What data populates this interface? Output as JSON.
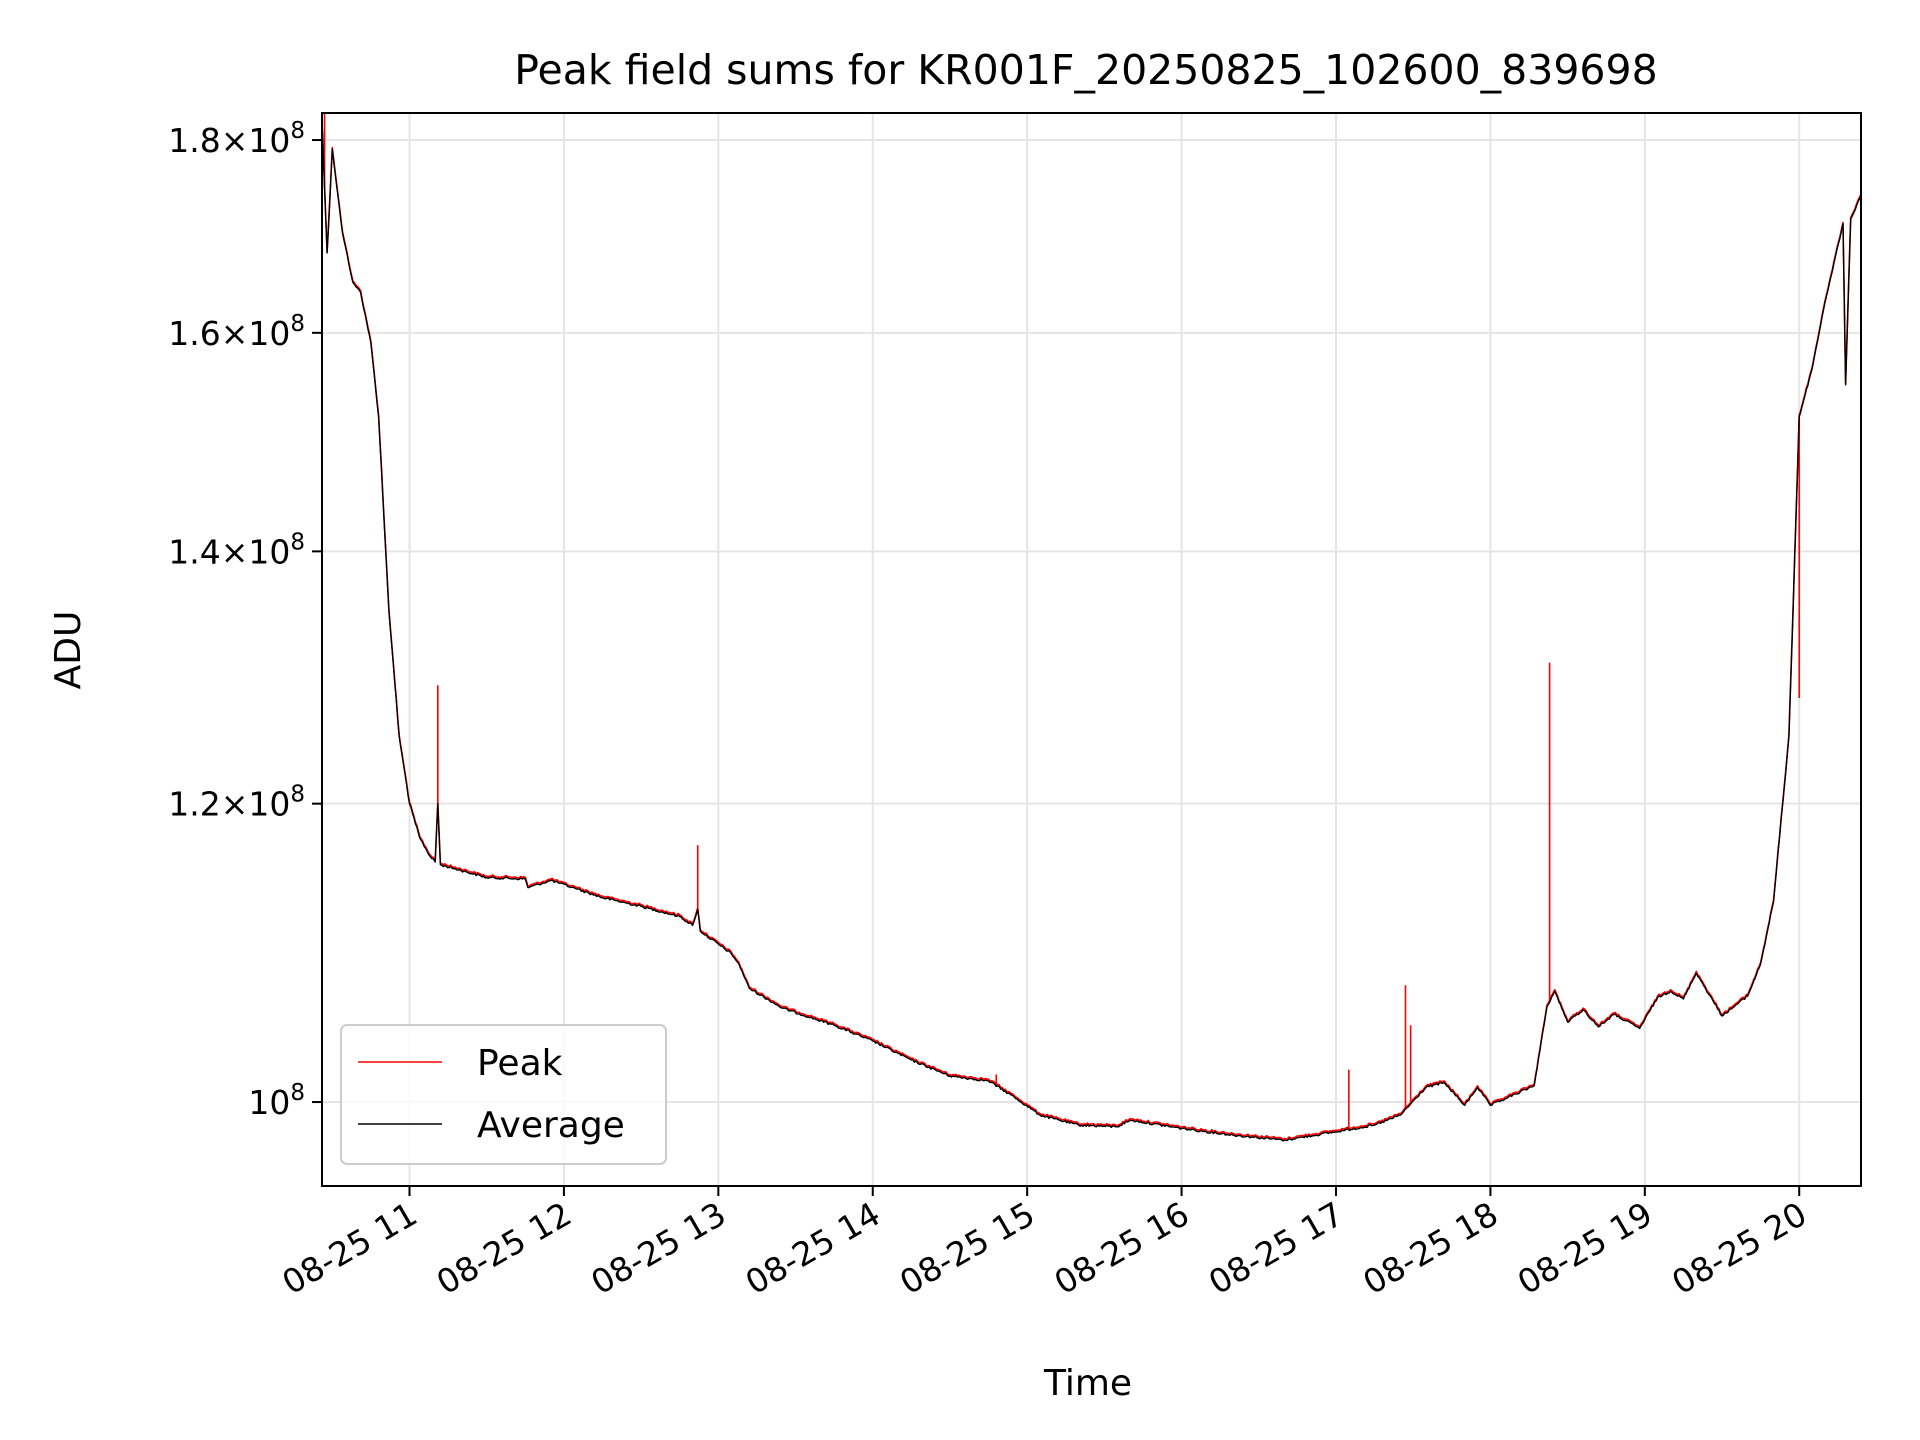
{
  "chart_data": {
    "type": "line",
    "title": "Peak field sums for KR001F_20250825_102600_839698",
    "xlabel": "Time",
    "ylabel": "ADU",
    "x_axis": {
      "kind": "datetime",
      "range": [
        "2025-08-25 10:26",
        "2025-08-25 20:24"
      ],
      "ticks": [
        "2025-08-25 11:00",
        "2025-08-25 12:00",
        "2025-08-25 13:00",
        "2025-08-25 14:00",
        "2025-08-25 15:00",
        "2025-08-25 16:00",
        "2025-08-25 17:00",
        "2025-08-25 18:00",
        "2025-08-25 19:00",
        "2025-08-25 20:00"
      ],
      "tick_labels": [
        "08-25 11",
        "08-25 12",
        "08-25 13",
        "08-25 14",
        "08-25 15",
        "08-25 16",
        "08-25 17",
        "08-25 18",
        "08-25 19",
        "08-25 20"
      ]
    },
    "y_axis": {
      "scale": "log",
      "range": [
        95000000,
        183000000
      ],
      "ticks": [
        100000000,
        120000000,
        140000000,
        160000000,
        180000000
      ],
      "tick_labels": [
        {
          "mantissa": "",
          "exponent": "8"
        },
        {
          "mantissa": "1.2",
          "exponent": "8"
        },
        {
          "mantissa": "1.4",
          "exponent": "8"
        },
        {
          "mantissa": "1.6",
          "exponent": "8"
        },
        {
          "mantissa": "1.8",
          "exponent": "8"
        }
      ]
    },
    "grid": true,
    "legend": {
      "position": "lower-left",
      "entries": [
        "Peak",
        "Average"
      ]
    },
    "series": [
      {
        "name": "Average",
        "color": "#000000",
        "points": [
          [
            "2025-08-25 10:26",
            182000000
          ],
          [
            "2025-08-25 10:28",
            168000000
          ],
          [
            "2025-08-25 10:30",
            179000000
          ],
          [
            "2025-08-25 10:34",
            170000000
          ],
          [
            "2025-08-25 10:38",
            165000000
          ],
          [
            "2025-08-25 10:41",
            164000000
          ],
          [
            "2025-08-25 10:45",
            159000000
          ],
          [
            "2025-08-25 10:48",
            152000000
          ],
          [
            "2025-08-25 10:52",
            135000000
          ],
          [
            "2025-08-25 10:56",
            125000000
          ],
          [
            "2025-08-25 11:00",
            120000000
          ],
          [
            "2025-08-25 11:04",
            117500000
          ],
          [
            "2025-08-25 11:08",
            116200000
          ],
          [
            "2025-08-25 11:10",
            115800000
          ],
          [
            "2025-08-25 11:11",
            120000000
          ],
          [
            "2025-08-25 11:12",
            115600000
          ],
          [
            "2025-08-25 11:20",
            115200000
          ],
          [
            "2025-08-25 11:30",
            114700000
          ],
          [
            "2025-08-25 11:45",
            114600000
          ],
          [
            "2025-08-25 11:46",
            114000000
          ],
          [
            "2025-08-25 11:55",
            114500000
          ],
          [
            "2025-08-25 12:05",
            113900000
          ],
          [
            "2025-08-25 12:15",
            113300000
          ],
          [
            "2025-08-25 12:30",
            112700000
          ],
          [
            "2025-08-25 12:45",
            112000000
          ],
          [
            "2025-08-25 12:50",
            111400000
          ],
          [
            "2025-08-25 12:52",
            112500000
          ],
          [
            "2025-08-25 12:53",
            111000000
          ],
          [
            "2025-08-25 13:05",
            109500000
          ],
          [
            "2025-08-25 13:08",
            108800000
          ],
          [
            "2025-08-25 13:12",
            107200000
          ],
          [
            "2025-08-25 13:25",
            105900000
          ],
          [
            "2025-08-25 13:45",
            104800000
          ],
          [
            "2025-08-25 14:00",
            103800000
          ],
          [
            "2025-08-25 14:15",
            102600000
          ],
          [
            "2025-08-25 14:30",
            101600000
          ],
          [
            "2025-08-25 14:45",
            101300000
          ],
          [
            "2025-08-25 14:55",
            100300000
          ],
          [
            "2025-08-25 15:05",
            99200000
          ],
          [
            "2025-08-25 15:20",
            98600000
          ],
          [
            "2025-08-25 15:35",
            98500000
          ],
          [
            "2025-08-25 15:40",
            98900000
          ],
          [
            "2025-08-25 16:00",
            98400000
          ],
          [
            "2025-08-25 16:20",
            98000000
          ],
          [
            "2025-08-25 16:40",
            97700000
          ],
          [
            "2025-08-25 17:00",
            98200000
          ],
          [
            "2025-08-25 17:15",
            98600000
          ],
          [
            "2025-08-25 17:25",
            99200000
          ],
          [
            "2025-08-25 17:35",
            100900000
          ],
          [
            "2025-08-25 17:42",
            101200000
          ],
          [
            "2025-08-25 17:50",
            99800000
          ],
          [
            "2025-08-25 17:55",
            100900000
          ],
          [
            "2025-08-25 18:00",
            99800000
          ],
          [
            "2025-08-25 18:10",
            100500000
          ],
          [
            "2025-08-25 18:17",
            101000000
          ],
          [
            "2025-08-25 18:22",
            106000000
          ],
          [
            "2025-08-25 18:25",
            107000000
          ],
          [
            "2025-08-25 18:30",
            105000000
          ],
          [
            "2025-08-25 18:36",
            105800000
          ],
          [
            "2025-08-25 18:42",
            104700000
          ],
          [
            "2025-08-25 18:48",
            105500000
          ],
          [
            "2025-08-25 18:58",
            104600000
          ],
          [
            "2025-08-25 19:05",
            106600000
          ],
          [
            "2025-08-25 19:10",
            107000000
          ],
          [
            "2025-08-25 19:15",
            106500000
          ],
          [
            "2025-08-25 19:20",
            108200000
          ],
          [
            "2025-08-25 19:30",
            105400000
          ],
          [
            "2025-08-25 19:40",
            106700000
          ],
          [
            "2025-08-25 19:45",
            108800000
          ],
          [
            "2025-08-25 19:50",
            113000000
          ],
          [
            "2025-08-25 19:56",
            125000000
          ],
          [
            "2025-08-25 20:00",
            152000000
          ],
          [
            "2025-08-25 20:05",
            156500000
          ],
          [
            "2025-08-25 20:10",
            163000000
          ],
          [
            "2025-08-25 20:17",
            171000000
          ],
          [
            "2025-08-25 20:18",
            155000000
          ],
          [
            "2025-08-25 20:20",
            171500000
          ],
          [
            "2025-08-25 20:24",
            174000000
          ]
        ]
      },
      {
        "name": "Peak",
        "color": "#ff0000",
        "spikes": [
          [
            "2025-08-25 10:27",
            183000000
          ],
          [
            "2025-08-25 11:11",
            129000000
          ],
          [
            "2025-08-25 12:52",
            117000000
          ],
          [
            "2025-08-25 14:48",
            101700000
          ],
          [
            "2025-08-25 16:30",
            97900000
          ],
          [
            "2025-08-25 17:05",
            102000000
          ],
          [
            "2025-08-25 17:27",
            107400000
          ],
          [
            "2025-08-25 17:29",
            104800000
          ],
          [
            "2025-08-25 18:23",
            130800000
          ],
          [
            "2025-08-25 20:00",
            128000000
          ]
        ]
      }
    ]
  }
}
